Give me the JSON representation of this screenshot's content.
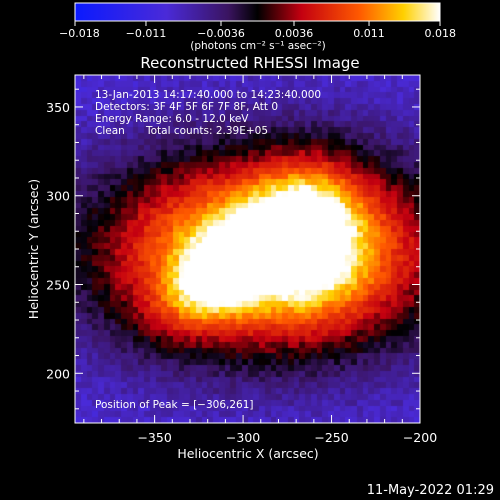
{
  "chart_data": {
    "type": "heatmap",
    "title": "Reconstructed RHESSI Image",
    "xlabel": "Heliocentric X (arcsec)",
    "ylabel": "Heliocentric Y (arcsec)",
    "xlim": [
      -395,
      -200
    ],
    "ylim": [
      172,
      368
    ],
    "x_ticks": [
      -350,
      -300,
      -250,
      -200
    ],
    "x_tick_labels": [
      "−350",
      "−300",
      "−250",
      "−200"
    ],
    "y_ticks": [
      200,
      250,
      300,
      350
    ],
    "y_tick_labels": [
      "200",
      "250",
      "300",
      "350"
    ],
    "colorbar": {
      "range": [
        -0.018,
        0.018
      ],
      "ticks": [
        -0.018,
        -0.011,
        -0.0036,
        0.0036,
        0.011,
        0.018
      ],
      "tick_labels": [
        "−0.018",
        "−0.011",
        "−0.0036",
        "0.0036",
        "0.011",
        "0.018"
      ],
      "unit_label": "(photons cm⁻² s⁻¹ asec⁻²)",
      "colors": [
        "#0a1aff",
        "#3a2ae0",
        "#6a2fc0",
        "#2a0a2e",
        "#000000",
        "#c40010",
        "#ff5a00",
        "#ffd000",
        "#ffffff"
      ]
    },
    "sources": [
      {
        "x": -306,
        "y": 261,
        "peak": 0.018
      },
      {
        "x": -262,
        "y": 280,
        "peak": 0.0155
      }
    ],
    "peak_position": [
      -306,
      261
    ],
    "background_level": -0.009
  },
  "annotations": {
    "time_range": "13-Jan-2013 14:17:40.000 to 14:23:40.000",
    "detectors": "Detectors: 3F 4F 5F 6F 7F 8F, Att 0",
    "energy": "Energy Range: 6.0 - 12.0 keV",
    "clean": "Clean",
    "counts": "Total counts: 2.39E+05",
    "peak_position": "Position of Peak = [−306,261]"
  },
  "footer": {
    "timestamp": "11-May-2022 01:29"
  }
}
